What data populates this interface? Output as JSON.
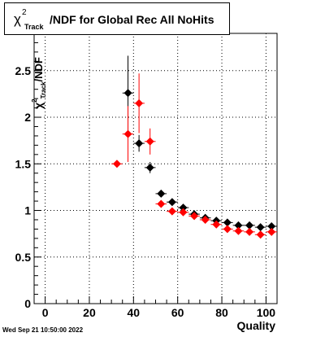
{
  "title": {
    "symbol": "χ",
    "superscript": "2",
    "subscript": "Track",
    "text": "/NDF for Global Rec All NoHits"
  },
  "timestamp": "Wed Sep 21 10:50:00 2022",
  "colors": {
    "series_black": "#000000",
    "series_red": "#ff0000",
    "grid": "#000000"
  },
  "chart_data": {
    "type": "scatter",
    "xlabel": "Quality",
    "ylabel": {
      "symbol": "χ",
      "superscript": "2",
      "subscript": "Track",
      "text": "/NDF"
    },
    "xlim": [
      -5,
      105
    ],
    "ylim": [
      0,
      2.9
    ],
    "grid": true,
    "x_ticks": [
      0,
      20,
      40,
      60,
      80,
      100
    ],
    "x_tick_labels": [
      "0",
      "20",
      "40",
      "60",
      "80",
      "100"
    ],
    "y_ticks": [
      0,
      0.5,
      1,
      1.5,
      2,
      2.5
    ],
    "y_tick_labels": [
      "0",
      "0.5",
      "1",
      "1.5",
      "2",
      "2.5"
    ],
    "series": [
      {
        "color": "#000000",
        "points": [
          {
            "x": 37.5,
            "y": 2.26,
            "err": 0.4
          },
          {
            "x": 42.5,
            "y": 1.72,
            "err": 0.09
          },
          {
            "x": 47.5,
            "y": 1.46,
            "err": 0.06
          },
          {
            "x": 52.5,
            "y": 1.18,
            "err": 0.03
          },
          {
            "x": 57.5,
            "y": 1.09,
            "err": 0.02
          },
          {
            "x": 62.5,
            "y": 1.03,
            "err": 0.02
          },
          {
            "x": 67.5,
            "y": 0.96,
            "err": 0.01
          },
          {
            "x": 72.5,
            "y": 0.92,
            "err": 0.01
          },
          {
            "x": 77.5,
            "y": 0.89,
            "err": 0.01
          },
          {
            "x": 82.5,
            "y": 0.87,
            "err": 0.01
          },
          {
            "x": 87.5,
            "y": 0.84,
            "err": 0.01
          },
          {
            "x": 92.5,
            "y": 0.84,
            "err": 0.01
          },
          {
            "x": 97.5,
            "y": 0.82,
            "err": 0.01
          },
          {
            "x": 102.5,
            "y": 0.83,
            "err": 0.01
          }
        ]
      },
      {
        "color": "#ff0000",
        "points": [
          {
            "x": 32.5,
            "y": 1.5,
            "err": 0.0
          },
          {
            "x": 37.5,
            "y": 1.82,
            "err": 0.3
          },
          {
            "x": 42.5,
            "y": 2.15,
            "err": 0.32
          },
          {
            "x": 47.5,
            "y": 1.74,
            "err": 0.14
          },
          {
            "x": 52.5,
            "y": 1.07,
            "err": 0.03
          },
          {
            "x": 57.5,
            "y": 0.99,
            "err": 0.02
          },
          {
            "x": 62.5,
            "y": 0.98,
            "err": 0.02
          },
          {
            "x": 67.5,
            "y": 0.94,
            "err": 0.01
          },
          {
            "x": 72.5,
            "y": 0.9,
            "err": 0.01
          },
          {
            "x": 77.5,
            "y": 0.85,
            "err": 0.01
          },
          {
            "x": 82.5,
            "y": 0.8,
            "err": 0.01
          },
          {
            "x": 87.5,
            "y": 0.78,
            "err": 0.01
          },
          {
            "x": 92.5,
            "y": 0.77,
            "err": 0.01
          },
          {
            "x": 97.5,
            "y": 0.74,
            "err": 0.01
          },
          {
            "x": 102.5,
            "y": 0.77,
            "err": 0.01
          }
        ]
      }
    ]
  }
}
